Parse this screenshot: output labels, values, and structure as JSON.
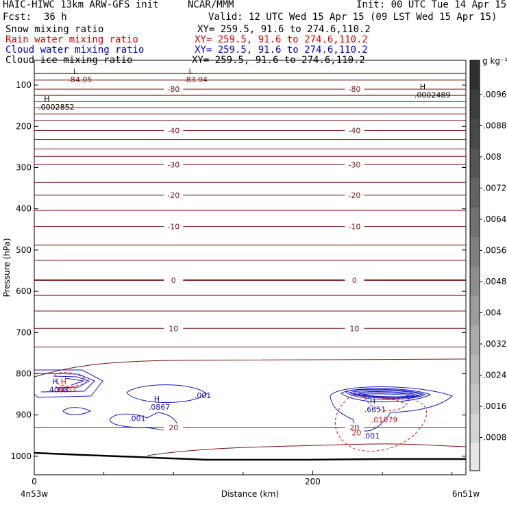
{
  "header": {
    "title_left": "HAIC-HIWC 13km ARW-GFS init",
    "title_center": "NCAR/MMM",
    "init_text": "Init: 00 UTC Tue 14 Apr 15",
    "fcst_label": "Fcst:",
    "fcst_value": "36 h",
    "valid_text": "Valid: 12 UTC Wed 15 Apr 15 (09 LST Wed 15 Apr 15)",
    "fields": [
      {
        "name": "Snow mixing ratio",
        "xy": "XY= 259.5, 91.6 to 274.6,110.2",
        "color": "#000000"
      },
      {
        "name": "Rain water mixing ratio",
        "xy": "XY= 259.5, 91.6 to 274.6,110.2",
        "color": "#dd0000"
      },
      {
        "name": "Cloud water mixing ratio",
        "xy": "XY= 259.5, 91.6 to 274.6,110.2",
        "color": "#0000cc"
      },
      {
        "name": "Cloud ice mixing ratio",
        "xy": "XY= 259.5, 91.6 to 274.6,110.2",
        "color": "#000000"
      }
    ]
  },
  "colors": {
    "temperature": "#7a1010",
    "cloud_water": "#1414c8",
    "rain": "#dd1111",
    "ground": "#000000"
  },
  "chart_data": {
    "type": "contour cross-section",
    "ylabel": "Pressure (hPa)",
    "xlabel": "Distance (km)",
    "x_start_label": "4n53w",
    "x_end_label": "6n51w",
    "xlim": [
      0,
      310
    ],
    "ylim": [
      1045,
      40
    ],
    "y_ticks": [
      100,
      200,
      300,
      400,
      500,
      600,
      700,
      800,
      900,
      1000
    ],
    "x_ticks": [
      0,
      200
    ],
    "colorbar": {
      "unit": "g kg⁻¹",
      "ticks": [
        ".0096",
        ".0088",
        ".008",
        ".0072",
        ".0064",
        ".0056",
        ".0048",
        ".004",
        ".0032",
        ".0024",
        ".0016",
        ".0008"
      ]
    },
    "temperature_contours": [
      {
        "pressure": 72,
        "label": ""
      },
      {
        "pressure": 88,
        "label": ""
      },
      {
        "pressure": 110,
        "label": "-80"
      },
      {
        "pressure": 125,
        "label": ""
      },
      {
        "pressure": 140,
        "label": ""
      },
      {
        "pressure": 155,
        "label": ""
      },
      {
        "pressure": 170,
        "label": ""
      },
      {
        "pressure": 186,
        "label": ""
      },
      {
        "pressure": 210,
        "label": "-40"
      },
      {
        "pressure": 232,
        "label": ""
      },
      {
        "pressure": 255,
        "label": ""
      },
      {
        "pressure": 273,
        "label": ""
      },
      {
        "pressure": 293,
        "label": "-30"
      },
      {
        "pressure": 336,
        "label": ""
      },
      {
        "pressure": 367,
        "label": "-20"
      },
      {
        "pressure": 404,
        "label": ""
      },
      {
        "pressure": 443,
        "label": "-10"
      },
      {
        "pressure": 488,
        "label": ""
      },
      {
        "pressure": 525,
        "label": ""
      },
      {
        "pressure": 573,
        "label": "0"
      },
      {
        "pressure": 610,
        "label": ""
      },
      {
        "pressure": 648,
        "label": ""
      },
      {
        "pressure": 690,
        "label": "10"
      },
      {
        "pressure": 735,
        "label": ""
      },
      {
        "pressure": 930,
        "label": "20"
      }
    ],
    "extrema_labels": [
      {
        "text": "L",
        "value": "-84.05",
        "x": 27,
        "p": 73,
        "color": "temperature"
      },
      {
        "text": "L",
        "value": "-83.94",
        "x": 110,
        "p": 73,
        "color": "temperature"
      },
      {
        "text": "H",
        "value": ".0002852",
        "x": 6,
        "p": 140,
        "color": "ground"
      },
      {
        "text": "H",
        "value": ".0002489",
        "x": 276,
        "p": 111,
        "color": "ground"
      },
      {
        "text": "H",
        "value": ".4008",
        "x": 12,
        "p": 825,
        "color": "cloud_water"
      },
      {
        "text": "H",
        "value": ".6057",
        "x": 18,
        "p": 825,
        "color": "rain"
      },
      {
        "text": "H",
        "value": ".0867",
        "x": 85,
        "p": 867,
        "color": "cloud_water"
      },
      {
        "text": "H",
        "value": ".6651",
        "x": 240,
        "p": 873,
        "color": "cloud_water"
      },
      {
        "text": "",
        "value": ".01079",
        "x": 245,
        "p": 898,
        "color": "rain"
      }
    ],
    "cloud_water_labels": [
      {
        "value": ".001",
        "x": 115,
        "p": 852
      },
      {
        "value": ".001",
        "x": 68,
        "p": 908
      },
      {
        "value": ".001",
        "x": 236,
        "p": 950
      }
    ],
    "rain_labels": [
      {
        "value": "20",
        "x": 228,
        "p": 943
      }
    ]
  }
}
